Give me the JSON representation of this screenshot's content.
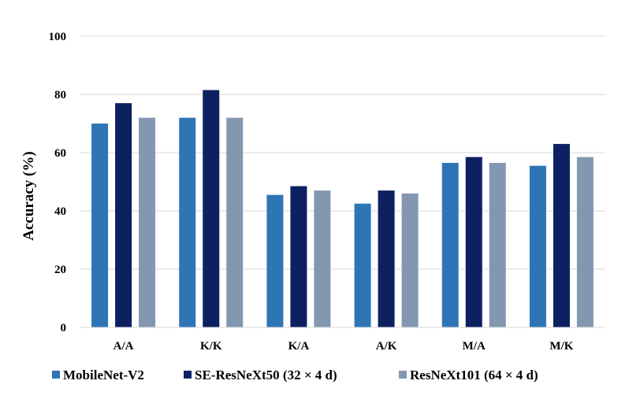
{
  "chart_data": {
    "type": "bar",
    "title": "",
    "xlabel": "",
    "ylabel": "Accuracy (%)",
    "ylim": [
      0,
      100
    ],
    "yticks": [
      0,
      20,
      40,
      60,
      80,
      100
    ],
    "grid": true,
    "legend_position": "bottom",
    "categories": [
      "A/A",
      "K/K",
      "K/A",
      "A/K",
      "M/A",
      "M/K"
    ],
    "series": [
      {
        "name": "MobileNet-V2",
        "color": "#2e75b6",
        "values": [
          70,
          72,
          45.5,
          42.5,
          56.5,
          55.5
        ]
      },
      {
        "name": "SE-ResNeXt50 (32 × 4 d)",
        "color": "#0d2060",
        "values": [
          77,
          81.5,
          48.5,
          47,
          58.5,
          63
        ]
      },
      {
        "name": "ResNeXt101 (64 × 4 d)",
        "color": "#8497b0",
        "values": [
          72,
          72,
          47,
          46,
          56.5,
          58.5
        ]
      }
    ]
  }
}
